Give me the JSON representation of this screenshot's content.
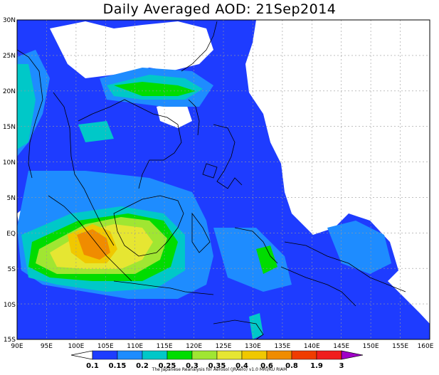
{
  "title": "Daily Averaged AOD: 21Sep2014",
  "credit": "The Japanese Reanalysis for Aerosol (JRAero) v1.0 MRI/KU RIAM",
  "lat_labels": [
    "30N",
    "25N",
    "20N",
    "15N",
    "10N",
    "5N",
    "EQ",
    "5S",
    "10S",
    "15S"
  ],
  "lon_labels": [
    "90E",
    "95E",
    "100E",
    "105E",
    "110E",
    "115E",
    "120E",
    "125E",
    "130E",
    "135E",
    "140E",
    "145E",
    "150E",
    "155E",
    "160E"
  ],
  "colorbar": {
    "levels": [
      "0.1",
      "0.15",
      "0.2",
      "0.25",
      "0.3",
      "0.35",
      "0.4",
      "0.6",
      "0.8",
      "1.9",
      "3"
    ],
    "colors": [
      "#ffffff",
      "#1e3cff",
      "#1e8cff",
      "#00c8c8",
      "#00dc00",
      "#a0e632",
      "#e6e632",
      "#f0c800",
      "#f08c00",
      "#f03c00",
      "#a000c8"
    ]
  },
  "map": {
    "lon_range": [
      90,
      160
    ],
    "lat_range": [
      -15,
      30
    ],
    "background_color": "#1e3cff"
  }
}
